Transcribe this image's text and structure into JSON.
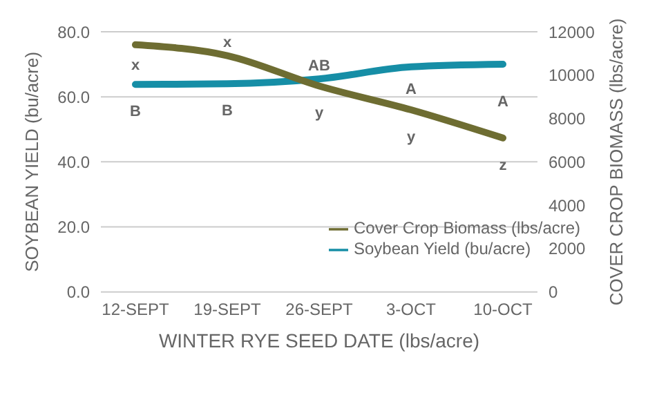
{
  "chart_data": {
    "type": "line",
    "xlabel": "WINTER RYE SEED DATE (lbs/acre)",
    "ylabel": "SOYBEAN YIELD (bu/acre)",
    "y2label": "COVER CROP BIOMASS (lbs/acre)",
    "categories": [
      "12-SEPT",
      "19-SEPT",
      "26-SEPT",
      "3-OCT",
      "10-OCT"
    ],
    "series": [
      {
        "name": "Soybean Yield (bu/acre)",
        "color": "#168ea6",
        "values": [
          63.8,
          64,
          65.5,
          69.2,
          70
        ]
      },
      {
        "name": "Cover Crop Biomass (lbs/acre)",
        "color": "#6e6d32",
        "values": [
          11400,
          10900,
          9500,
          8400,
          7100
        ],
        "axis": "y2"
      }
    ],
    "ylim": [
      0,
      80
    ],
    "yticks": [
      {
        "value": 0,
        "label": "0.0"
      },
      {
        "value": 20,
        "label": "20.0"
      },
      {
        "value": 40,
        "label": "40.0"
      },
      {
        "value": 60,
        "label": "60.0"
      },
      {
        "value": 80,
        "label": "80.0"
      }
    ],
    "y2lim": [
      0,
      12000
    ],
    "y2ticks": [
      0,
      2000,
      4000,
      6000,
      8000,
      10000,
      12000
    ],
    "grid": "y",
    "legend": "right",
    "marker": "none",
    "line_style": "solid",
    "annotations": [
      "x",
      "x",
      "AB",
      "A",
      "A",
      "B",
      "B",
      "y",
      "y",
      "z"
    ]
  }
}
